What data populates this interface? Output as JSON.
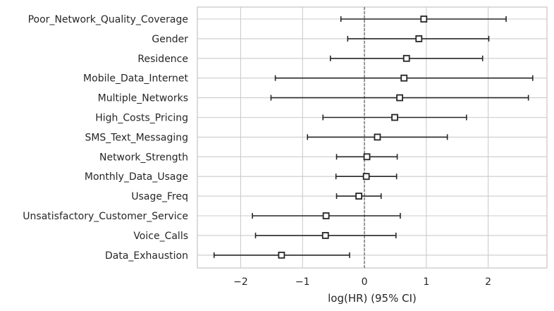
{
  "chart_data": {
    "type": "forest",
    "xlabel": "log(HR) (95% CI)",
    "xlim": [
      -2.7,
      2.95
    ],
    "xticks": [
      -2,
      -1,
      0,
      1,
      2
    ],
    "xtick_labels": [
      "−2",
      "−1",
      "0",
      "1",
      "2"
    ],
    "grid": true,
    "reference_line_x": 0,
    "rows": [
      {
        "label": "Poor_Network_Quality_Coverage",
        "coef": 0.96,
        "lower": -0.38,
        "upper": 2.29
      },
      {
        "label": "Gender",
        "coef": 0.88,
        "lower": -0.27,
        "upper": 2.01
      },
      {
        "label": "Residence",
        "coef": 0.68,
        "lower": -0.55,
        "upper": 1.91
      },
      {
        "label": "Mobile_Data_Internet",
        "coef": 0.64,
        "lower": -1.44,
        "upper": 2.72
      },
      {
        "label": "Multiple_Networks",
        "coef": 0.57,
        "lower": -1.51,
        "upper": 2.65
      },
      {
        "label": "High_Costs_Pricing",
        "coef": 0.49,
        "lower": -0.67,
        "upper": 1.65
      },
      {
        "label": "SMS_Text_Messaging",
        "coef": 0.21,
        "lower": -0.92,
        "upper": 1.34
      },
      {
        "label": "Network_Strength",
        "coef": 0.04,
        "lower": -0.45,
        "upper": 0.53
      },
      {
        "label": "Monthly_Data_Usage",
        "coef": 0.03,
        "lower": -0.46,
        "upper": 0.52
      },
      {
        "label": "Usage_Freq",
        "coef": -0.09,
        "lower": -0.45,
        "upper": 0.27
      },
      {
        "label": "Unsatisfactory_Customer_Service",
        "coef": -0.62,
        "lower": -1.81,
        "upper": 0.58
      },
      {
        "label": "Voice_Calls",
        "coef": -0.63,
        "lower": -1.76,
        "upper": 0.51
      },
      {
        "label": "Data_Exhaustion",
        "coef": -1.34,
        "lower": -2.43,
        "upper": -0.24
      }
    ],
    "colors": {
      "line": "#262626",
      "grid": "#cccccc",
      "frame": "#cccccc",
      "marker_fill": "#ffffff",
      "refline": "#595959"
    }
  }
}
